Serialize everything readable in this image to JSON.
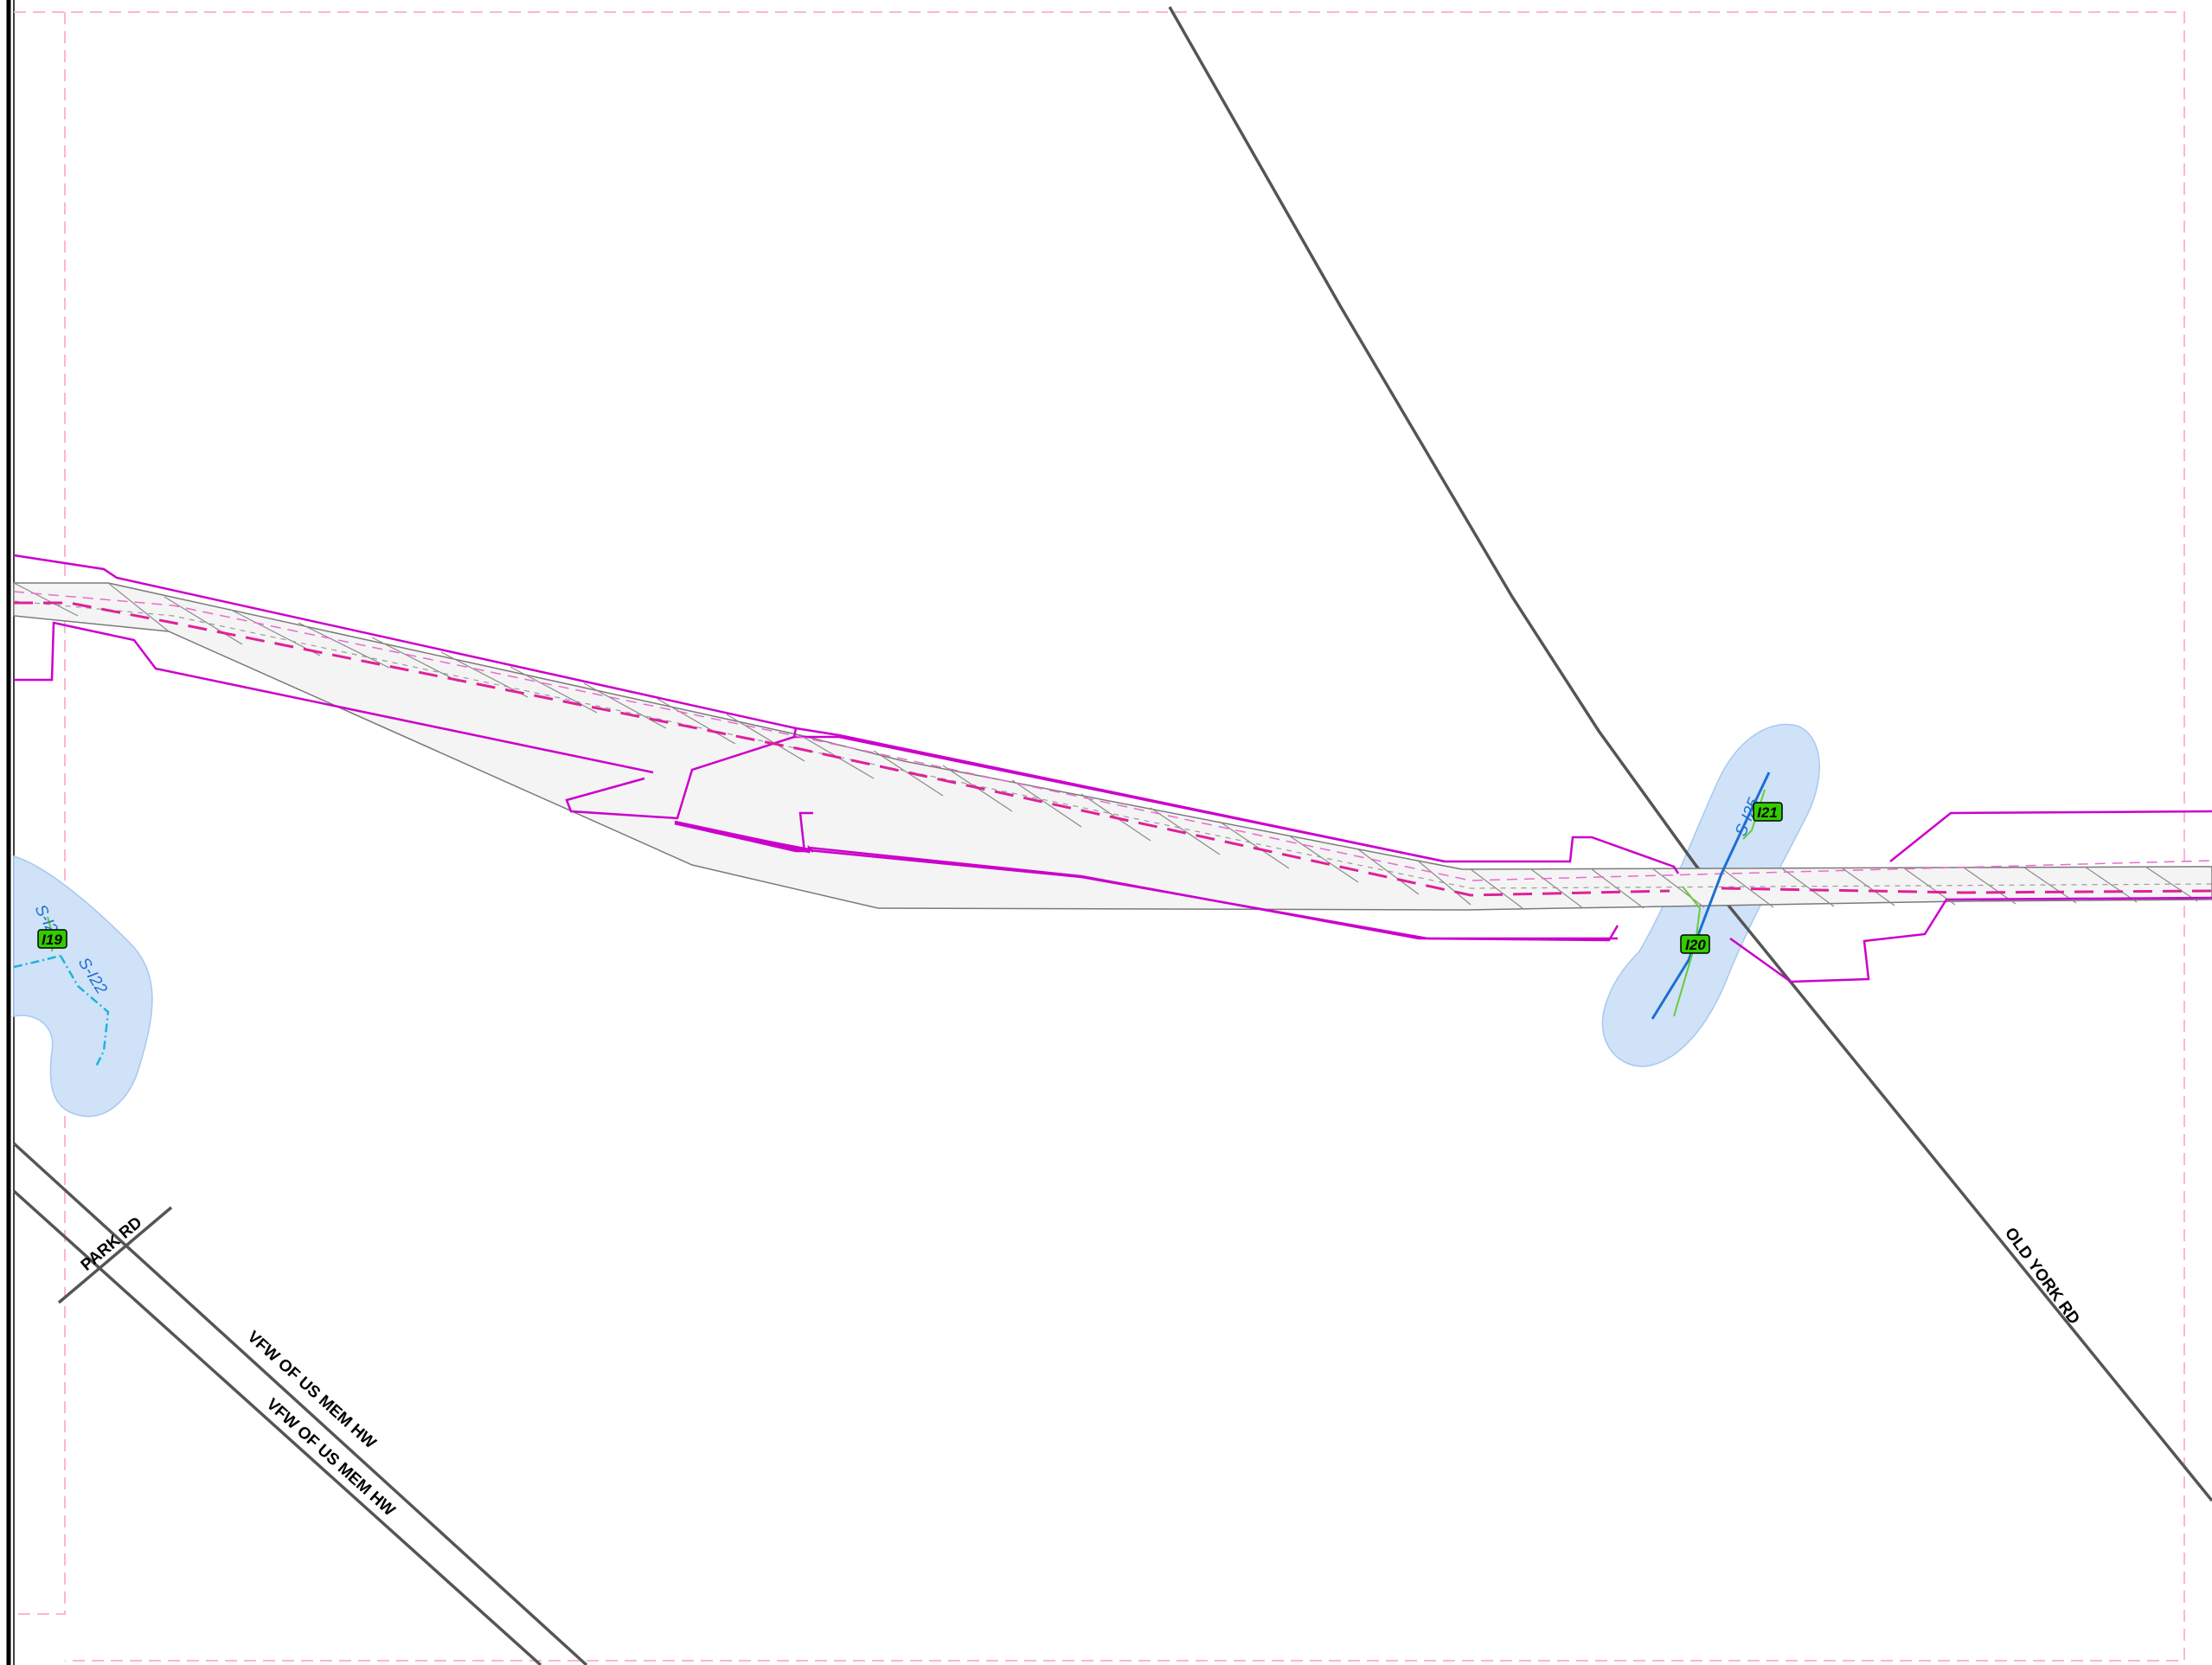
{
  "roads": [
    {
      "label": "OLD YORK RD"
    },
    {
      "label": "PARK RD"
    },
    {
      "label": "VFW OF US MEM HW"
    },
    {
      "label": "VFW OF US MEM HW"
    }
  ],
  "streams": [
    {
      "label": "S-I25"
    },
    {
      "label": "S-I2"
    },
    {
      "label": "S-I22"
    }
  ],
  "markers": [
    {
      "label": "I19"
    },
    {
      "label": "I20"
    },
    {
      "label": "I21"
    }
  ],
  "colors": {
    "background": "#ffffff",
    "road_line": "#555555",
    "work_area_boundary": "#cc00cc",
    "centerline_dashed": "#e0209a",
    "sheet_boundary_dashed": "#ffb3da",
    "wetland_fill": "#cfe2f8",
    "stream_line": "#1e6fd0",
    "stream_dotted": "#1fb3d8",
    "wetland_edge": "#66cc33",
    "marker_fill": "#33cc00",
    "frame": "#000000"
  }
}
